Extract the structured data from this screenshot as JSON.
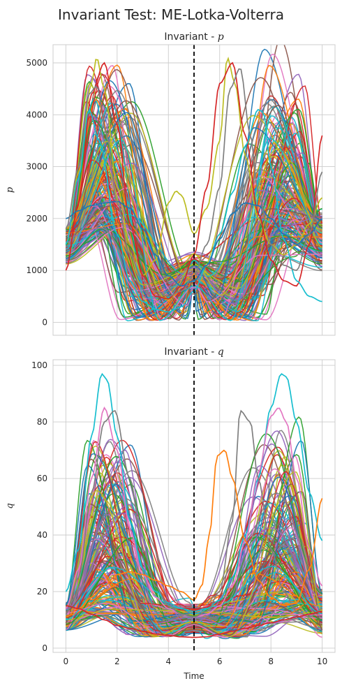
{
  "figure": {
    "title": "Invariant Test: ME-Lotka-Volterra",
    "shared_xlabel": "Time"
  },
  "palette": [
    "#1f77b4",
    "#ff7f0e",
    "#2ca02c",
    "#d62728",
    "#9467bd",
    "#8c564b",
    "#e377c2",
    "#7f7f7f",
    "#bcbd22",
    "#17becf"
  ],
  "chart_data": [
    {
      "id": "p",
      "type": "line",
      "title_prefix": "Invariant - ",
      "title_var": "p",
      "xlabel": "",
      "ylabel": "p",
      "xlim": [
        -0.5,
        10.5
      ],
      "ylim": [
        -250,
        5350
      ],
      "xticks": [
        0,
        2,
        4,
        6,
        8,
        10
      ],
      "yticks": [
        0,
        1000,
        2000,
        3000,
        4000,
        5000
      ],
      "show_xtick_labels": false,
      "grid": true,
      "vline_x": 5,
      "vline_style": "dashed",
      "series_count": 200,
      "generator": {
        "base": 1400,
        "base_spread": 700,
        "peak_min": 1800,
        "peak_spread": 3300,
        "trough_min": 30,
        "trough_spread": 900,
        "mirror_around": 5,
        "seed": 7
      },
      "highlight_series": [
        {
          "color": "#bcbd22",
          "x": [
            0,
            0.5,
            1.0,
            1.2,
            1.5,
            2.0,
            2.5,
            3.0,
            3.5,
            4.0,
            4.3,
            4.5,
            5.0,
            5.5,
            6.0,
            6.3,
            6.6,
            7.0,
            7.5,
            8.0,
            8.5,
            9.0,
            9.5,
            10.0
          ],
          "y": [
            1500,
            2900,
            4600,
            5100,
            4500,
            2600,
            1500,
            900,
            1200,
            2300,
            2530,
            2450,
            1700,
            2200,
            3500,
            5100,
            4600,
            3200,
            2000,
            1500,
            1300,
            1500,
            1900,
            2400
          ]
        },
        {
          "color": "#d62728",
          "x": [
            0,
            0.5,
            1.0,
            1.5,
            2.0,
            2.5,
            3.0,
            3.5,
            4.0,
            4.5,
            5.0,
            5.5,
            6.0,
            6.5,
            7.0,
            7.5,
            8.0,
            8.5,
            9.0,
            9.5,
            10.0
          ],
          "y": [
            1000,
            2300,
            4400,
            5000,
            3800,
            1900,
            900,
            500,
            450,
            700,
            1300,
            2600,
            4600,
            5000,
            3600,
            2100,
            1200,
            800,
            700,
            1500,
            3600
          ]
        },
        {
          "color": "#17becf",
          "x": [
            0,
            0.5,
            0.9,
            1.3,
            2.0,
            2.5,
            3.0,
            3.5,
            4.0,
            4.5,
            5.0,
            5.5,
            6.0,
            6.5,
            7.0,
            7.5,
            7.7,
            8.0,
            8.5,
            9.0,
            9.5,
            10.0
          ],
          "y": [
            1500,
            2800,
            4100,
            3500,
            1700,
            800,
            400,
            250,
            200,
            300,
            600,
            1100,
            1700,
            2500,
            3400,
            4100,
            4050,
            3000,
            1600,
            800,
            500,
            400
          ]
        },
        {
          "color": "#1f77b4",
          "x": [
            0,
            0.5,
            1.0,
            1.5,
            2.0,
            2.5,
            3.0,
            3.5,
            4.0,
            4.5,
            5.0,
            5.5,
            6.0,
            6.5,
            7.0,
            7.5,
            8.0,
            8.5,
            9.0,
            9.5,
            10.0
          ],
          "y": [
            2000,
            2150,
            2250,
            2300,
            2330,
            2200,
            1800,
            1300,
            900,
            700,
            800,
            1100,
            1600,
            2100,
            2300,
            2250,
            2000,
            1700,
            1500,
            1700,
            2000
          ]
        },
        {
          "color": "#7f7f7f",
          "x": [
            0,
            0.5,
            0.9,
            1.2,
            1.6,
            2.0,
            2.5,
            3.0,
            3.5,
            4.0,
            4.5,
            5.0,
            5.5,
            6.0,
            6.4,
            6.8,
            7.2,
            7.5,
            8.0,
            8.5,
            9.0,
            9.5,
            10.0
          ],
          "y": [
            1800,
            3000,
            4400,
            4550,
            3600,
            2300,
            1300,
            800,
            600,
            500,
            600,
            900,
            1500,
            2600,
            4500,
            4900,
            3600,
            2500,
            1500,
            1100,
            1000,
            1700,
            2900
          ]
        }
      ]
    },
    {
      "id": "q",
      "type": "line",
      "title_prefix": "Invariant - ",
      "title_var": "q",
      "xlabel": "Time",
      "ylabel": "q",
      "xlim": [
        -0.5,
        10.5
      ],
      "ylim": [
        -1.5,
        102
      ],
      "xticks": [
        0,
        2,
        4,
        6,
        8,
        10
      ],
      "yticks": [
        0,
        20,
        40,
        60,
        80,
        100
      ],
      "show_xtick_labels": true,
      "grid": true,
      "vline_x": 5,
      "vline_style": "dashed",
      "series_count": 200,
      "generator": {
        "base": 10,
        "base_spread": 10,
        "peak_min": 12,
        "peak_spread": 62,
        "trough_min": 4,
        "trough_spread": 12,
        "mirror_around": 5,
        "seed": 11
      },
      "highlight_series": [
        {
          "color": "#17becf",
          "x": [
            0,
            0.5,
            1.0,
            1.4,
            1.6,
            2.0,
            2.5,
            3.0,
            3.5,
            4.0,
            4.5,
            5.0,
            5.5,
            6.0,
            6.5,
            7.0,
            7.5,
            8.0,
            8.4,
            8.6,
            9.0,
            9.5,
            10.0
          ],
          "y": [
            20,
            35,
            75,
            97,
            95,
            75,
            45,
            28,
            20,
            16,
            14,
            13,
            14,
            17,
            25,
            40,
            60,
            85,
            97,
            96,
            80,
            55,
            38
          ]
        },
        {
          "color": "#e377c2",
          "x": [
            0,
            0.5,
            1.0,
            1.5,
            2.0,
            2.5,
            3.0,
            3.5,
            4.0,
            4.5,
            5.0,
            5.5,
            6.0,
            6.5,
            7.0,
            7.5,
            8.0,
            8.3,
            8.6,
            9.0,
            9.5,
            10.0
          ],
          "y": [
            14,
            28,
            60,
            85,
            70,
            42,
            26,
            18,
            14,
            12,
            11,
            12,
            15,
            22,
            38,
            62,
            82,
            85,
            80,
            60,
            35,
            22
          ]
        },
        {
          "color": "#7f7f7f",
          "x": [
            0,
            0.5,
            1.0,
            1.5,
            1.9,
            2.5,
            3.0,
            3.5,
            4.0,
            4.5,
            5.0,
            5.5,
            6.0,
            6.5,
            6.8,
            7.2,
            7.5,
            8.0,
            8.5,
            9.0,
            9.5,
            10.0
          ],
          "y": [
            12,
            25,
            55,
            80,
            84,
            60,
            35,
            22,
            15,
            12,
            11,
            13,
            20,
            45,
            84,
            80,
            60,
            35,
            20,
            13,
            11,
            14
          ]
        },
        {
          "color": "#ff7f0e",
          "x": [
            0,
            0.5,
            1.0,
            1.5,
            2.0,
            2.5,
            3.0,
            3.5,
            4.0,
            4.5,
            5.0,
            5.3,
            5.6,
            5.9,
            6.2,
            6.5,
            7.0,
            7.5,
            8.0,
            8.5,
            9.0,
            9.5,
            10.0
          ],
          "y": [
            11,
            14,
            18,
            22,
            26,
            27,
            26,
            24,
            22,
            20,
            17,
            22,
            40,
            68,
            70,
            60,
            38,
            24,
            18,
            15,
            16,
            28,
            53
          ]
        },
        {
          "color": "#d62728",
          "x": [
            0,
            0.5,
            1.0,
            1.5,
            2.0,
            2.5,
            3.0,
            3.5,
            4.0,
            4.5,
            5.0,
            5.5,
            6.0,
            6.5,
            7.0,
            7.5,
            8.0,
            8.5,
            9.0,
            9.5,
            10.0
          ],
          "y": [
            15,
            14,
            12,
            10,
            8,
            7,
            6,
            5,
            4.5,
            4,
            3.8,
            4,
            5,
            6,
            7,
            8,
            9,
            10,
            11,
            12,
            13
          ]
        }
      ]
    }
  ]
}
